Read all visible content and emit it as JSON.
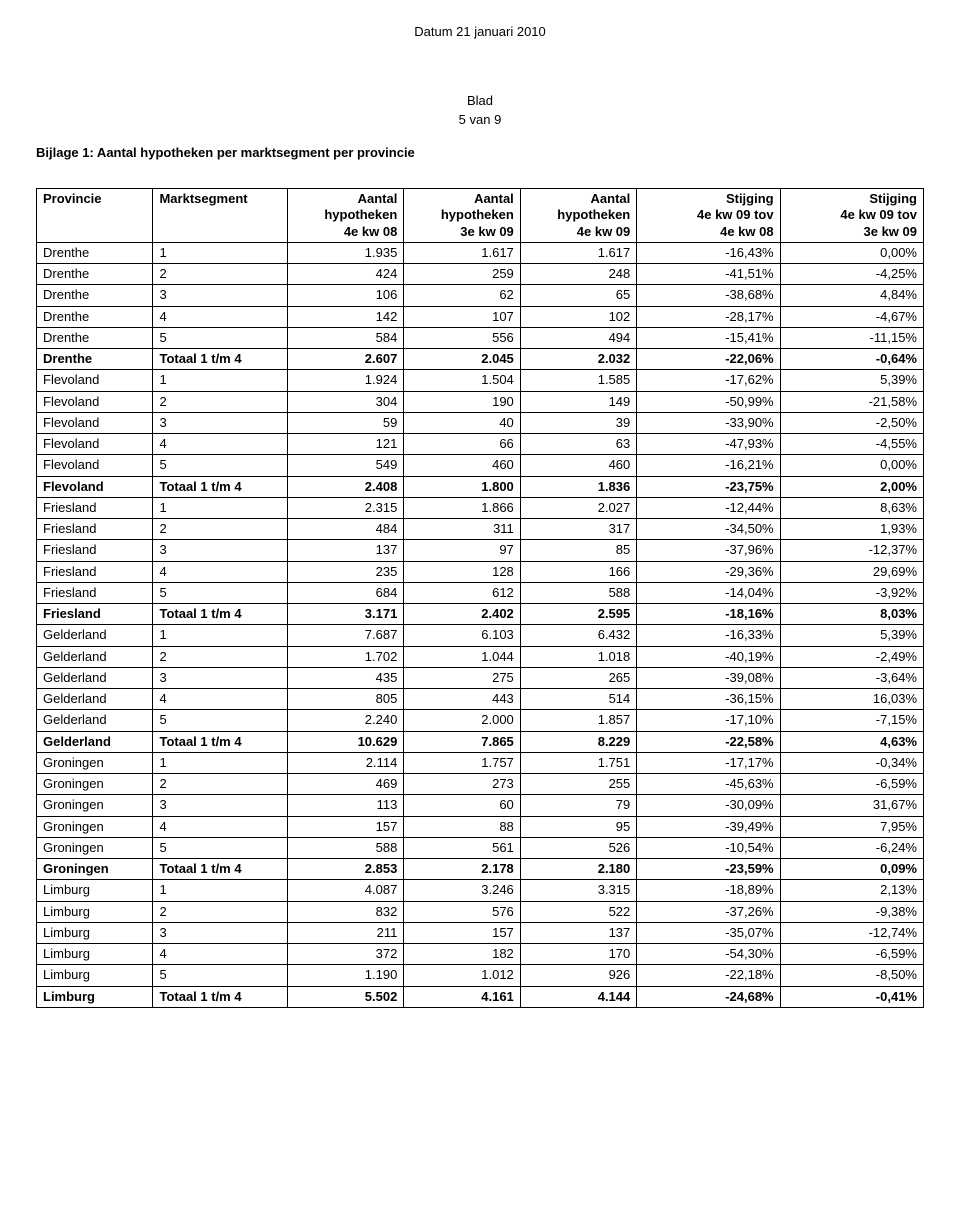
{
  "header": {
    "datum": "Datum 21 januari 2010",
    "blad_label": "Blad",
    "page_label": "5 van 9"
  },
  "title": "Bijlage 1: Aantal hypotheken per marktsegment per provincie",
  "columns": [
    "Provincie",
    "Marktsegment",
    "Aantal hypotheken 4e kw 08",
    "Aantal hypotheken 3e kw 09",
    "Aantal hypotheken 4e kw 09",
    "Stijging 4e kw 09 tov 4e kw 08",
    "Stijging 4e kw 09 tov 3e kw 09"
  ],
  "header_cells": [
    {
      "lines": [
        "Provincie"
      ],
      "num": false
    },
    {
      "lines": [
        "Marktsegment"
      ],
      "num": false
    },
    {
      "lines": [
        "Aantal",
        "hypotheken",
        "4e kw 08"
      ],
      "num": true
    },
    {
      "lines": [
        "Aantal",
        "hypotheken",
        "3e kw 09"
      ],
      "num": true
    },
    {
      "lines": [
        "Aantal",
        "hypotheken",
        "4e kw 09"
      ],
      "num": true
    },
    {
      "lines": [
        "Stijging",
        "4e kw 09 tov",
        "4e kw 08"
      ],
      "num": true
    },
    {
      "lines": [
        "Stijging",
        "4e kw 09 tov",
        "3e kw 09"
      ],
      "num": true
    }
  ],
  "rows": [
    {
      "cells": [
        "Drenthe",
        "1",
        "1.935",
        "1.617",
        "1.617",
        "-16,43%",
        "0,00%"
      ],
      "totaal": false
    },
    {
      "cells": [
        "Drenthe",
        "2",
        "424",
        "259",
        "248",
        "-41,51%",
        "-4,25%"
      ],
      "totaal": false
    },
    {
      "cells": [
        "Drenthe",
        "3",
        "106",
        "62",
        "65",
        "-38,68%",
        "4,84%"
      ],
      "totaal": false
    },
    {
      "cells": [
        "Drenthe",
        "4",
        "142",
        "107",
        "102",
        "-28,17%",
        "-4,67%"
      ],
      "totaal": false
    },
    {
      "cells": [
        "Drenthe",
        "5",
        "584",
        "556",
        "494",
        "-15,41%",
        "-11,15%"
      ],
      "totaal": false
    },
    {
      "cells": [
        "Drenthe",
        "Totaal 1 t/m 4",
        "2.607",
        "2.045",
        "2.032",
        "-22,06%",
        "-0,64%"
      ],
      "totaal": true
    },
    {
      "cells": [
        "Flevoland",
        "1",
        "1.924",
        "1.504",
        "1.585",
        "-17,62%",
        "5,39%"
      ],
      "totaal": false
    },
    {
      "cells": [
        "Flevoland",
        "2",
        "304",
        "190",
        "149",
        "-50,99%",
        "-21,58%"
      ],
      "totaal": false
    },
    {
      "cells": [
        "Flevoland",
        "3",
        "59",
        "40",
        "39",
        "-33,90%",
        "-2,50%"
      ],
      "totaal": false
    },
    {
      "cells": [
        "Flevoland",
        "4",
        "121",
        "66",
        "63",
        "-47,93%",
        "-4,55%"
      ],
      "totaal": false
    },
    {
      "cells": [
        "Flevoland",
        "5",
        "549",
        "460",
        "460",
        "-16,21%",
        "0,00%"
      ],
      "totaal": false
    },
    {
      "cells": [
        "Flevoland",
        "Totaal 1 t/m 4",
        "2.408",
        "1.800",
        "1.836",
        "-23,75%",
        "2,00%"
      ],
      "totaal": true
    },
    {
      "cells": [
        "Friesland",
        "1",
        "2.315",
        "1.866",
        "2.027",
        "-12,44%",
        "8,63%"
      ],
      "totaal": false
    },
    {
      "cells": [
        "Friesland",
        "2",
        "484",
        "311",
        "317",
        "-34,50%",
        "1,93%"
      ],
      "totaal": false
    },
    {
      "cells": [
        "Friesland",
        "3",
        "137",
        "97",
        "85",
        "-37,96%",
        "-12,37%"
      ],
      "totaal": false
    },
    {
      "cells": [
        "Friesland",
        "4",
        "235",
        "128",
        "166",
        "-29,36%",
        "29,69%"
      ],
      "totaal": false
    },
    {
      "cells": [
        "Friesland",
        "5",
        "684",
        "612",
        "588",
        "-14,04%",
        "-3,92%"
      ],
      "totaal": false
    },
    {
      "cells": [
        "Friesland",
        "Totaal 1 t/m 4",
        "3.171",
        "2.402",
        "2.595",
        "-18,16%",
        "8,03%"
      ],
      "totaal": true
    },
    {
      "cells": [
        "Gelderland",
        "1",
        "7.687",
        "6.103",
        "6.432",
        "-16,33%",
        "5,39%"
      ],
      "totaal": false
    },
    {
      "cells": [
        "Gelderland",
        "2",
        "1.702",
        "1.044",
        "1.018",
        "-40,19%",
        "-2,49%"
      ],
      "totaal": false
    },
    {
      "cells": [
        "Gelderland",
        "3",
        "435",
        "275",
        "265",
        "-39,08%",
        "-3,64%"
      ],
      "totaal": false
    },
    {
      "cells": [
        "Gelderland",
        "4",
        "805",
        "443",
        "514",
        "-36,15%",
        "16,03%"
      ],
      "totaal": false
    },
    {
      "cells": [
        "Gelderland",
        "5",
        "2.240",
        "2.000",
        "1.857",
        "-17,10%",
        "-7,15%"
      ],
      "totaal": false
    },
    {
      "cells": [
        "Gelderland",
        "Totaal 1 t/m 4",
        "10.629",
        "7.865",
        "8.229",
        "-22,58%",
        "4,63%"
      ],
      "totaal": true
    },
    {
      "cells": [
        "Groningen",
        "1",
        "2.114",
        "1.757",
        "1.751",
        "-17,17%",
        "-0,34%"
      ],
      "totaal": false
    },
    {
      "cells": [
        "Groningen",
        "2",
        "469",
        "273",
        "255",
        "-45,63%",
        "-6,59%"
      ],
      "totaal": false
    },
    {
      "cells": [
        "Groningen",
        "3",
        "113",
        "60",
        "79",
        "-30,09%",
        "31,67%"
      ],
      "totaal": false
    },
    {
      "cells": [
        "Groningen",
        "4",
        "157",
        "88",
        "95",
        "-39,49%",
        "7,95%"
      ],
      "totaal": false
    },
    {
      "cells": [
        "Groningen",
        "5",
        "588",
        "561",
        "526",
        "-10,54%",
        "-6,24%"
      ],
      "totaal": false
    },
    {
      "cells": [
        "Groningen",
        "Totaal 1 t/m 4",
        "2.853",
        "2.178",
        "2.180",
        "-23,59%",
        "0,09%"
      ],
      "totaal": true
    },
    {
      "cells": [
        "Limburg",
        "1",
        "4.087",
        "3.246",
        "3.315",
        "-18,89%",
        "2,13%"
      ],
      "totaal": false
    },
    {
      "cells": [
        "Limburg",
        "2",
        "832",
        "576",
        "522",
        "-37,26%",
        "-9,38%"
      ],
      "totaal": false
    },
    {
      "cells": [
        "Limburg",
        "3",
        "211",
        "157",
        "137",
        "-35,07%",
        "-12,74%"
      ],
      "totaal": false
    },
    {
      "cells": [
        "Limburg",
        "4",
        "372",
        "182",
        "170",
        "-54,30%",
        "-6,59%"
      ],
      "totaal": false
    },
    {
      "cells": [
        "Limburg",
        "5",
        "1.190",
        "1.012",
        "926",
        "-22,18%",
        "-8,50%"
      ],
      "totaal": false
    },
    {
      "cells": [
        "Limburg",
        "Totaal 1 t/m 4",
        "5.502",
        "4.161",
        "4.144",
        "-24,68%",
        "-0,41%"
      ],
      "totaal": true
    }
  ],
  "numeric_cols": [
    false,
    false,
    true,
    true,
    true,
    true,
    true
  ]
}
